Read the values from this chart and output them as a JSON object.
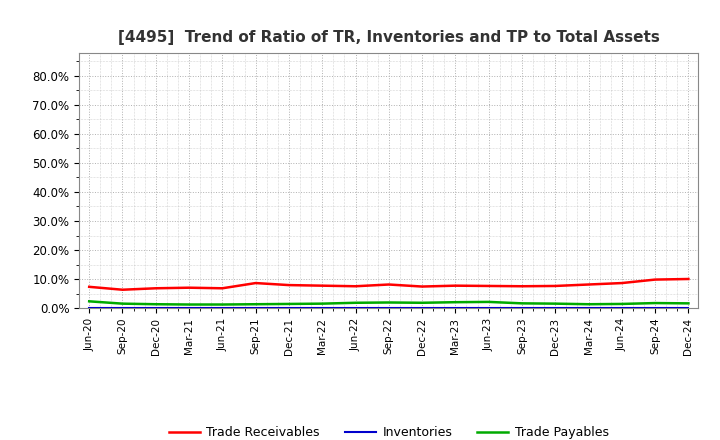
{
  "title": "[4495]  Trend of Ratio of TR, Inventories and TP to Total Assets",
  "title_fontsize": 11,
  "background_color": "#ffffff",
  "plot_bg_color": "#ffffff",
  "grid_color": "#b0b0b0",
  "x_labels": [
    "Jun-20",
    "Sep-20",
    "Dec-20",
    "Mar-21",
    "Jun-21",
    "Sep-21",
    "Dec-21",
    "Mar-22",
    "Jun-22",
    "Sep-22",
    "Dec-22",
    "Mar-23",
    "Jun-23",
    "Sep-23",
    "Dec-23",
    "Mar-24",
    "Jun-24",
    "Sep-24",
    "Dec-24"
  ],
  "trade_receivables": [
    0.073,
    0.063,
    0.068,
    0.07,
    0.068,
    0.086,
    0.079,
    0.077,
    0.075,
    0.081,
    0.074,
    0.077,
    0.076,
    0.075,
    0.076,
    0.081,
    0.086,
    0.098,
    0.1
  ],
  "inventories": [
    0.0,
    0.0,
    0.0,
    0.0,
    0.0,
    0.0,
    0.0,
    0.0,
    0.0,
    0.0,
    0.0,
    0.0,
    0.0,
    0.0,
    0.0,
    0.0,
    0.0,
    0.0,
    0.0
  ],
  "trade_payables": [
    0.023,
    0.015,
    0.013,
    0.012,
    0.012,
    0.013,
    0.014,
    0.015,
    0.018,
    0.019,
    0.018,
    0.02,
    0.021,
    0.016,
    0.015,
    0.013,
    0.014,
    0.017,
    0.016
  ],
  "line_colors": {
    "trade_receivables": "#ff0000",
    "inventories": "#0000cc",
    "trade_payables": "#00aa00"
  },
  "line_widths": {
    "trade_receivables": 1.8,
    "inventories": 1.5,
    "trade_payables": 1.8
  },
  "legend_labels": [
    "Trade Receivables",
    "Inventories",
    "Trade Payables"
  ],
  "ylim": [
    0.0,
    0.88
  ],
  "yticks": [
    0.0,
    0.1,
    0.2,
    0.3,
    0.4,
    0.5,
    0.6,
    0.7,
    0.8
  ],
  "ytick_labels": [
    "0.0%",
    "10.0%",
    "20.0%",
    "30.0%",
    "40.0%",
    "50.0%",
    "60.0%",
    "70.0%",
    "80.0%"
  ]
}
